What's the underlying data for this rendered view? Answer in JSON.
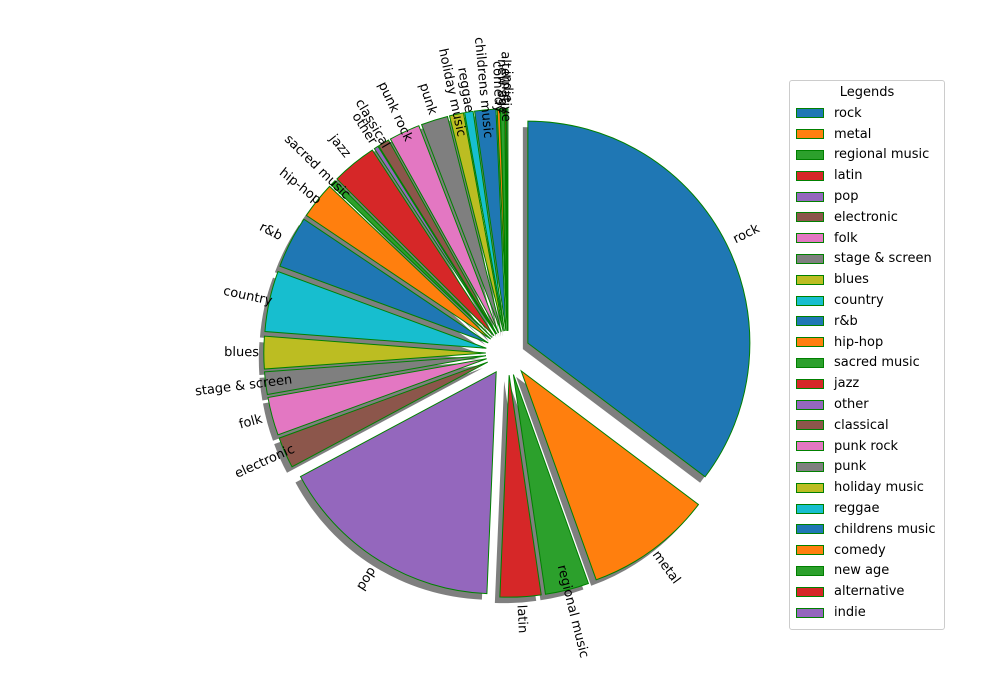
{
  "chart_data": {
    "type": "pie",
    "title": "",
    "legend_title": "Legends",
    "legend_position": "right",
    "slices": [
      {
        "label": "rock",
        "value": 34.4,
        "color": "#1f77b4"
      },
      {
        "label": "metal",
        "value": 9.0,
        "color": "#ff7f0e"
      },
      {
        "label": "regional music",
        "value": 3.1,
        "color": "#2ca02c"
      },
      {
        "label": "latin",
        "value": 2.9,
        "color": "#d62728"
      },
      {
        "label": "pop",
        "value": 16.1,
        "color": "#9467bd"
      },
      {
        "label": "electronic",
        "value": 2.2,
        "color": "#8c564b"
      },
      {
        "label": "folk",
        "value": 2.7,
        "color": "#e377c2"
      },
      {
        "label": "stage & screen",
        "value": 1.6,
        "color": "#7f7f7f"
      },
      {
        "label": "blues",
        "value": 2.3,
        "color": "#bcbd22"
      },
      {
        "label": "country",
        "value": 4.3,
        "color": "#17becf"
      },
      {
        "label": "r&b",
        "value": 3.7,
        "color": "#1f77b4"
      },
      {
        "label": "hip-hop",
        "value": 2.6,
        "color": "#ff7f0e"
      },
      {
        "label": "sacred music",
        "value": 0.4,
        "color": "#2ca02c"
      },
      {
        "label": "jazz",
        "value": 3.2,
        "color": "#d62728"
      },
      {
        "label": "other",
        "value": 0.3,
        "color": "#9467bd"
      },
      {
        "label": "classical",
        "value": 0.8,
        "color": "#8c564b"
      },
      {
        "label": "punk rock",
        "value": 2.2,
        "color": "#e377c2"
      },
      {
        "label": "punk",
        "value": 1.9,
        "color": "#7f7f7f"
      },
      {
        "label": "holiday music",
        "value": 1.0,
        "color": "#bcbd22"
      },
      {
        "label": "reggae",
        "value": 0.6,
        "color": "#17becf"
      },
      {
        "label": "childrens music",
        "value": 1.5,
        "color": "#1f77b4"
      },
      {
        "label": "comedy",
        "value": 0.2,
        "color": "#ff7f0e"
      },
      {
        "label": "new age",
        "value": 0.3,
        "color": "#2ca02c"
      },
      {
        "label": "alternative",
        "value": 0.1,
        "color": "#d62728"
      },
      {
        "label": "indie",
        "value": 0.1,
        "color": "#9467bd"
      }
    ]
  }
}
